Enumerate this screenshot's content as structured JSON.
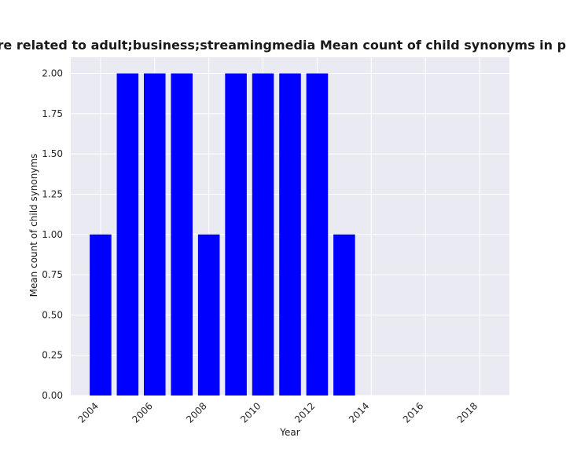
{
  "chart_data": {
    "type": "bar",
    "title": "ories are related to adult;business;streamingmedia Mean count of child synonyms in privacy po",
    "xlabel": "Year",
    "ylabel": "Mean count of child synonyms",
    "x": [
      2004,
      2005,
      2006,
      2007,
      2008,
      2009,
      2010,
      2011,
      2012,
      2013
    ],
    "values": [
      1,
      2,
      2,
      2,
      1,
      2,
      2,
      2,
      2,
      1
    ],
    "xlim": [
      2002.9,
      2019.1
    ],
    "ylim": [
      0,
      2.1
    ],
    "x_ticks": [
      "2004",
      "2006",
      "2008",
      "2010",
      "2012",
      "2014",
      "2016",
      "2018"
    ],
    "y_ticks": [
      "0.00",
      "0.25",
      "0.50",
      "0.75",
      "1.00",
      "1.25",
      "1.50",
      "1.75",
      "2.00"
    ],
    "bar_color": "#0000ff",
    "plot_background": "#eaeaf2",
    "grid": true,
    "grid_color": "#ffffff",
    "legend": "none"
  }
}
